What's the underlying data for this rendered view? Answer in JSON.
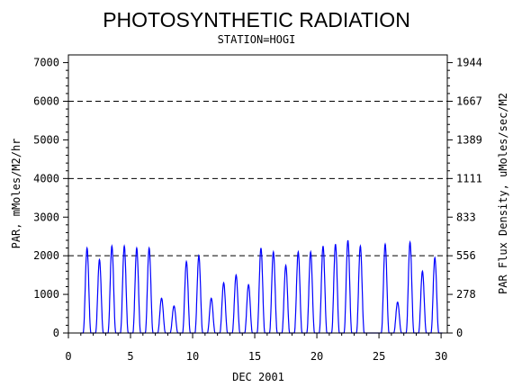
{
  "chart_data": {
    "type": "line",
    "title": "PHOTOSYNTHETIC RADIATION",
    "subtitle": "STATION=HOGI",
    "xlabel": "DEC 2001",
    "ylabel_left": "PAR, mMoles/M2/hr",
    "ylabel_right": "PAR Flux Density, uMoles/sec/M2",
    "xlim": [
      0,
      30.5
    ],
    "ylim": [
      0,
      7200
    ],
    "x_ticks": [
      0,
      5,
      10,
      15,
      20,
      25,
      30
    ],
    "x_tick_labels": [
      "0",
      "5",
      "10",
      "15",
      "20",
      "25",
      "30"
    ],
    "y_ticks_left": [
      0,
      1000,
      2000,
      3000,
      4000,
      5000,
      6000,
      7000
    ],
    "y_tick_labels_left": [
      "0",
      "1000",
      "2000",
      "3000",
      "4000",
      "5000",
      "6000",
      "7000"
    ],
    "y_ticks_right": [
      0,
      1000,
      2000,
      3000,
      4000,
      5000,
      6000,
      7000
    ],
    "y_tick_labels_right": [
      "0",
      "278",
      "556",
      "833",
      "1111",
      "1389",
      "1667",
      "1944"
    ],
    "dashed_gridlines_y": [
      2000,
      4000,
      6000
    ],
    "series_color": "#0000ff",
    "series": [
      {
        "daily_peaks": [
          {
            "x": 1.5,
            "y": 2200
          },
          {
            "x": 2.5,
            "y": 1900
          },
          {
            "x": 3.5,
            "y": 2250
          },
          {
            "x": 4.5,
            "y": 2250
          },
          {
            "x": 5.5,
            "y": 2200
          },
          {
            "x": 6.5,
            "y": 2200
          },
          {
            "x": 7.5,
            "y": 900
          },
          {
            "x": 8.5,
            "y": 700
          },
          {
            "x": 9.5,
            "y": 1850
          },
          {
            "x": 10.5,
            "y": 2000
          },
          {
            "x": 11.5,
            "y": 900
          },
          {
            "x": 12.5,
            "y": 1300
          },
          {
            "x": 13.5,
            "y": 1500
          },
          {
            "x": 14.5,
            "y": 1250
          },
          {
            "x": 15.5,
            "y": 2200
          },
          {
            "x": 16.5,
            "y": 2100
          },
          {
            "x": 17.5,
            "y": 1750
          },
          {
            "x": 18.5,
            "y": 2100
          },
          {
            "x": 19.5,
            "y": 2100
          },
          {
            "x": 20.5,
            "y": 2250
          },
          {
            "x": 21.5,
            "y": 2300
          },
          {
            "x": 22.5,
            "y": 2400
          },
          {
            "x": 23.5,
            "y": 2250
          },
          {
            "x": 25.5,
            "y": 2300
          },
          {
            "x": 26.5,
            "y": 800
          },
          {
            "x": 27.5,
            "y": 2350
          },
          {
            "x": 28.5,
            "y": 1600
          },
          {
            "x": 29.5,
            "y": 1950
          }
        ]
      }
    ]
  }
}
